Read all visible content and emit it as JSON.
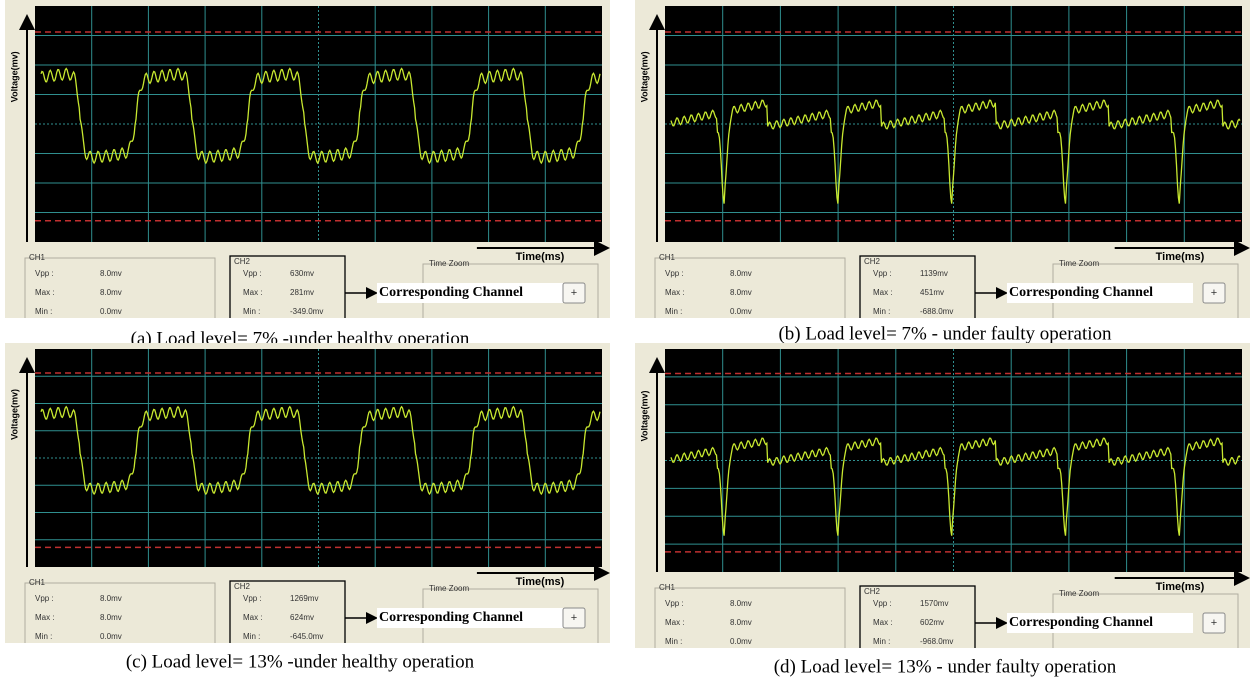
{
  "panels": [
    {
      "caption": "(a) Load level= 7% -under healthy operation",
      "y_axis_label": "Voltage(mv)",
      "x_axis_label": "Time(ms)",
      "ch1": {
        "title": "CH1",
        "rows": [
          [
            "Vpp :",
            "8.0mv"
          ],
          [
            "Max :",
            "8.0mv"
          ],
          [
            "Min :",
            "0.0mv"
          ]
        ]
      },
      "ch2": {
        "title": "CH2",
        "rows": [
          [
            "Vpp :",
            "630mv"
          ],
          [
            "Max :",
            "281mv"
          ],
          [
            "Min :",
            "-349.0mv"
          ]
        ]
      },
      "time_zoom": "Time Zoom",
      "annotation": "Corresponding Channel",
      "button": "+"
    },
    {
      "caption": "(b) Load level= 7% - under faulty operation",
      "y_axis_label": "Voltage(mv)",
      "x_axis_label": "Time(ms)",
      "ch1": {
        "title": "CH1",
        "rows": [
          [
            "Vpp :",
            "8.0mv"
          ],
          [
            "Max :",
            "8.0mv"
          ],
          [
            "Min :",
            "0.0mv"
          ]
        ]
      },
      "ch2": {
        "title": "CH2",
        "rows": [
          [
            "Vpp :",
            "1139mv"
          ],
          [
            "Max :",
            "451mv"
          ],
          [
            "Min :",
            "-688.0mv"
          ]
        ]
      },
      "time_zoom": "Time Zoom",
      "annotation": "Corresponding Channel",
      "button": "+"
    },
    {
      "caption": "(c) Load level= 13% -under healthy operation",
      "y_axis_label": "Voltage(mv)",
      "x_axis_label": "Time(ms)",
      "ch1": {
        "title": "CH1",
        "rows": [
          [
            "Vpp :",
            "8.0mv"
          ],
          [
            "Max :",
            "8.0mv"
          ],
          [
            "Min :",
            "0.0mv"
          ]
        ]
      },
      "ch2": {
        "title": "CH2",
        "rows": [
          [
            "Vpp :",
            "1269mv"
          ],
          [
            "Max :",
            "624mv"
          ],
          [
            "Min :",
            "-645.0mv"
          ]
        ]
      },
      "time_zoom": "Time Zoom",
      "annotation": "Corresponding Channel",
      "button": "+"
    },
    {
      "caption": "(d) Load level= 13% - under faulty operation",
      "y_axis_label": "Voltage(mv)",
      "x_axis_label": "Time(ms)",
      "ch1": {
        "title": "CH1",
        "rows": [
          [
            "Vpp :",
            "8.0mv"
          ],
          [
            "Max :",
            "8.0mv"
          ],
          [
            "Min :",
            "0.0mv"
          ]
        ]
      },
      "ch2": {
        "title": "CH2",
        "rows": [
          [
            "Vpp :",
            "1570mv"
          ],
          [
            "Max :",
            "602mv"
          ],
          [
            "Min :",
            "-968.0mv"
          ]
        ]
      },
      "time_zoom": "Time Zoom",
      "annotation": "Corresponding Channel",
      "button": "+"
    }
  ]
}
